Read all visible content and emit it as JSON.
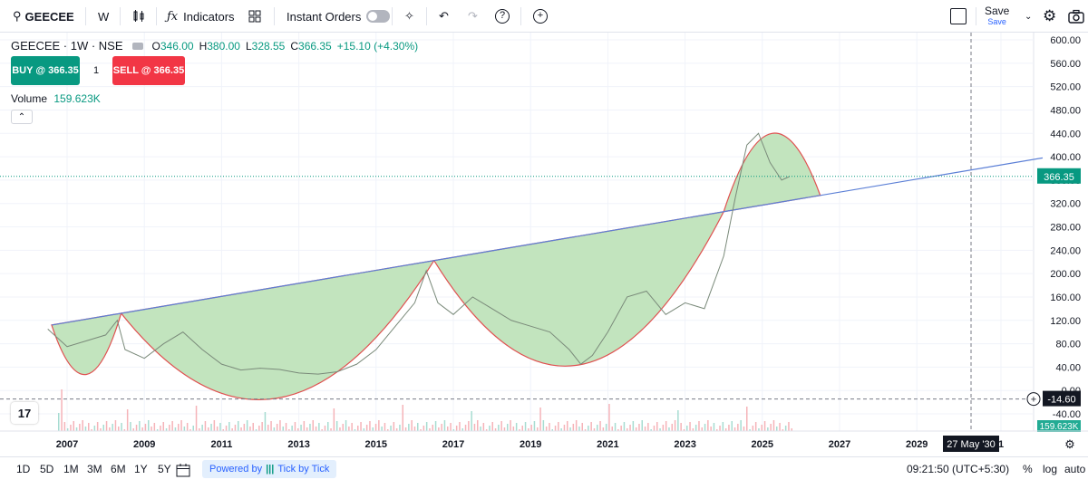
{
  "toolbar": {
    "symbol": "GEECEE",
    "interval": "W",
    "indicators_label": "Indicators",
    "instant_orders_label": "Instant Orders",
    "save_label": "Save",
    "save_sub": "Save"
  },
  "legend": {
    "title": "GEECEE · 1W · NSE",
    "open_label": "O",
    "open": "346.00",
    "high_label": "H",
    "high": "380.00",
    "low_label": "L",
    "low": "328.55",
    "close_label": "C",
    "close": "366.35",
    "change": "+15.10 (+4.30%)"
  },
  "trade": {
    "buy_label": "BUY @ 366.35",
    "sell_label": "SELL @ 366.35",
    "quantity": "1",
    "buy_color": "#089981",
    "sell_color": "#f23645"
  },
  "volume": {
    "label": "Volume",
    "value": "159.623K"
  },
  "axis": {
    "price_labels": [
      "600.00",
      "560.00",
      "520.00",
      "480.00",
      "440.00",
      "400.00",
      "360.00",
      "320.00",
      "280.00",
      "240.00",
      "200.00",
      "160.00",
      "120.00",
      "80.00",
      "40.00",
      "0.00",
      "-40.00"
    ],
    "last_price": "366.35",
    "crosshair_price": "-14.60",
    "volume_tag": "159.623K",
    "year_labels": [
      "2007",
      "2009",
      "2011",
      "2013",
      "2015",
      "2017",
      "2019",
      "2021",
      "2023",
      "2025",
      "2027",
      "2029",
      "1"
    ],
    "crosshair_date": "27 May '30"
  },
  "bottombar": {
    "ranges": [
      "1D",
      "5D",
      "1M",
      "3M",
      "6M",
      "1Y",
      "5Y"
    ],
    "powered_by": "Powered by",
    "powered_brand": "Tick by Tick",
    "time": "09:21:50 (UTC+5:30)",
    "percent": "%",
    "log": "log",
    "auto": "auto"
  },
  "chart_data": {
    "type": "line",
    "title": "GEECEE · 1W · NSE",
    "xlabel": "",
    "ylabel": "",
    "ylim": [
      -40,
      600
    ],
    "x": [
      2006.5,
      2007.0,
      2007.5,
      2008.0,
      2008.3,
      2008.5,
      2009.0,
      2009.5,
      2010.0,
      2010.5,
      2011.0,
      2011.5,
      2012.0,
      2012.5,
      2013.0,
      2013.5,
      2014.0,
      2014.5,
      2015.0,
      2015.5,
      2016.0,
      2016.3,
      2016.6,
      2017.0,
      2017.5,
      2018.0,
      2018.5,
      2019.0,
      2019.5,
      2020.0,
      2020.3,
      2020.6,
      2021.0,
      2021.5,
      2022.0,
      2022.5,
      2023.0,
      2023.5,
      2024.0,
      2024.3,
      2024.6,
      2024.9,
      2025.2,
      2025.5,
      2025.7
    ],
    "values": [
      105,
      75,
      85,
      95,
      120,
      70,
      55,
      80,
      100,
      70,
      45,
      35,
      38,
      36,
      30,
      28,
      32,
      45,
      70,
      110,
      150,
      205,
      150,
      130,
      160,
      140,
      120,
      110,
      100,
      70,
      45,
      60,
      100,
      160,
      170,
      130,
      150,
      140,
      230,
      330,
      420,
      440,
      390,
      360,
      366
    ]
  },
  "pattern": {
    "trendline_color": "#5b7fd6",
    "fill_color": "#c2e4be",
    "arc_color": "#e05050"
  }
}
